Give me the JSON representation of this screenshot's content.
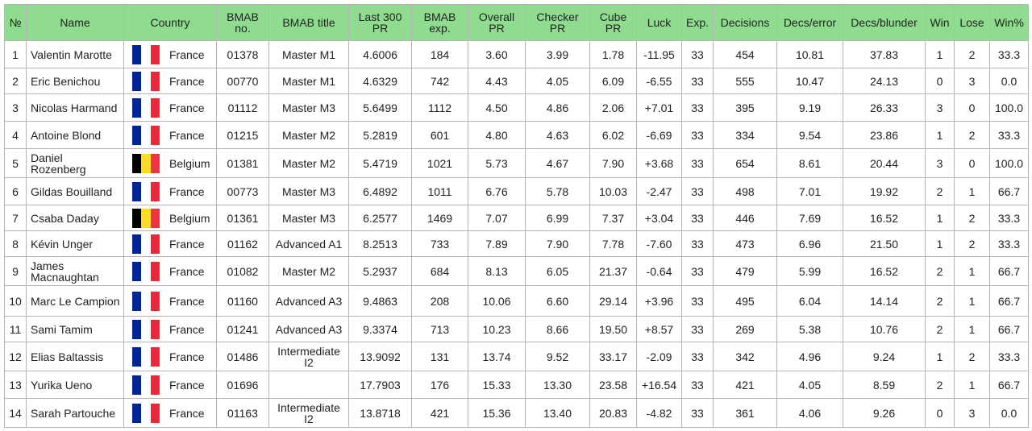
{
  "table": {
    "headers": [
      "№",
      "Name",
      "Country",
      "BMAB no.",
      "BMAB title",
      "Last 300 PR",
      "BMAB exp.",
      "Overall PR",
      "Checker PR",
      "Cube PR",
      "Luck",
      "Exp.",
      "Decisions",
      "Decs/error",
      "Decs/blunder",
      "Win",
      "Lose",
      "Win%"
    ],
    "flags": {
      "France": [
        "#002395",
        "#ffffff",
        "#ed2939"
      ],
      "Belgium": [
        "#000000",
        "#fdda24",
        "#ef3340"
      ]
    },
    "rows": [
      [
        "1",
        "Valentin Marotte",
        "France",
        "01378",
        "Master M1",
        "4.6006",
        "184",
        "3.60",
        "3.99",
        "1.78",
        "-11.95",
        "33",
        "454",
        "10.81",
        "37.83",
        "1",
        "2",
        "33.3"
      ],
      [
        "2",
        "Eric Benichou",
        "France",
        "00770",
        "Master M1",
        "4.6329",
        "742",
        "4.43",
        "4.05",
        "6.09",
        "-6.55",
        "33",
        "555",
        "10.47",
        "24.13",
        "0",
        "3",
        "0.0"
      ],
      [
        "3",
        "Nicolas Harmand",
        "France",
        "01112",
        "Master M3",
        "5.6499",
        "1112",
        "4.50",
        "4.86",
        "2.06",
        "+7.01",
        "33",
        "395",
        "9.19",
        "26.33",
        "3",
        "0",
        "100.0"
      ],
      [
        "4",
        "Antoine Blond",
        "France",
        "01215",
        "Master M2",
        "5.2819",
        "601",
        "4.80",
        "4.63",
        "6.02",
        "-6.69",
        "33",
        "334",
        "9.54",
        "23.86",
        "1",
        "2",
        "33.3"
      ],
      [
        "5",
        "Daniel Rozenberg",
        "Belgium",
        "01381",
        "Master M2",
        "5.4719",
        "1021",
        "5.73",
        "4.67",
        "7.90",
        "+3.68",
        "33",
        "654",
        "8.61",
        "20.44",
        "3",
        "0",
        "100.0"
      ],
      [
        "6",
        "Gildas Bouilland",
        "France",
        "00773",
        "Master M3",
        "6.4892",
        "1011",
        "6.76",
        "5.78",
        "10.03",
        "-2.47",
        "33",
        "498",
        "7.01",
        "19.92",
        "2",
        "1",
        "66.7"
      ],
      [
        "7",
        "Csaba Daday",
        "Belgium",
        "01361",
        "Master M3",
        "6.2577",
        "1469",
        "7.07",
        "6.99",
        "7.37",
        "+3.04",
        "33",
        "446",
        "7.69",
        "16.52",
        "1",
        "2",
        "33.3"
      ],
      [
        "8",
        "Kévin Unger",
        "France",
        "01162",
        "Advanced A1",
        "8.2513",
        "733",
        "7.89",
        "7.90",
        "7.78",
        "-7.60",
        "33",
        "473",
        "6.96",
        "21.50",
        "1",
        "2",
        "33.3"
      ],
      [
        "9",
        "James Macnaughtan",
        "France",
        "01082",
        "Master M2",
        "5.2937",
        "684",
        "8.13",
        "6.05",
        "21.37",
        "-0.64",
        "33",
        "479",
        "5.99",
        "16.52",
        "2",
        "1",
        "66.7"
      ],
      [
        "10",
        "Marc Le Campion",
        "France",
        "01160",
        "Advanced A3",
        "9.4863",
        "208",
        "10.06",
        "6.60",
        "29.14",
        "+3.96",
        "33",
        "495",
        "6.04",
        "14.14",
        "2",
        "1",
        "66.7"
      ],
      [
        "11",
        "Sami Tamim",
        "France",
        "01241",
        "Advanced A3",
        "9.3374",
        "713",
        "10.23",
        "8.66",
        "19.50",
        "+8.57",
        "33",
        "269",
        "5.38",
        "10.76",
        "2",
        "1",
        "66.7"
      ],
      [
        "12",
        "Elias Baltassis",
        "France",
        "01486",
        "Intermediate I2",
        "13.9092",
        "131",
        "13.74",
        "9.52",
        "33.17",
        "-2.09",
        "33",
        "342",
        "4.96",
        "9.24",
        "1",
        "2",
        "33.3"
      ],
      [
        "13",
        "Yurika Ueno",
        "France",
        "01696",
        null,
        "17.7903",
        "176",
        "15.33",
        "13.30",
        "23.58",
        "+16.54",
        "33",
        "421",
        "4.05",
        "8.59",
        "2",
        "1",
        "66.7"
      ],
      [
        "14",
        "Sarah Partouche",
        "France",
        "01163",
        "Intermediate I2",
        "13.8718",
        "421",
        "15.36",
        "13.40",
        "20.83",
        "-4.82",
        "33",
        "361",
        "4.06",
        "9.26",
        "0",
        "3",
        "0.0"
      ]
    ]
  }
}
